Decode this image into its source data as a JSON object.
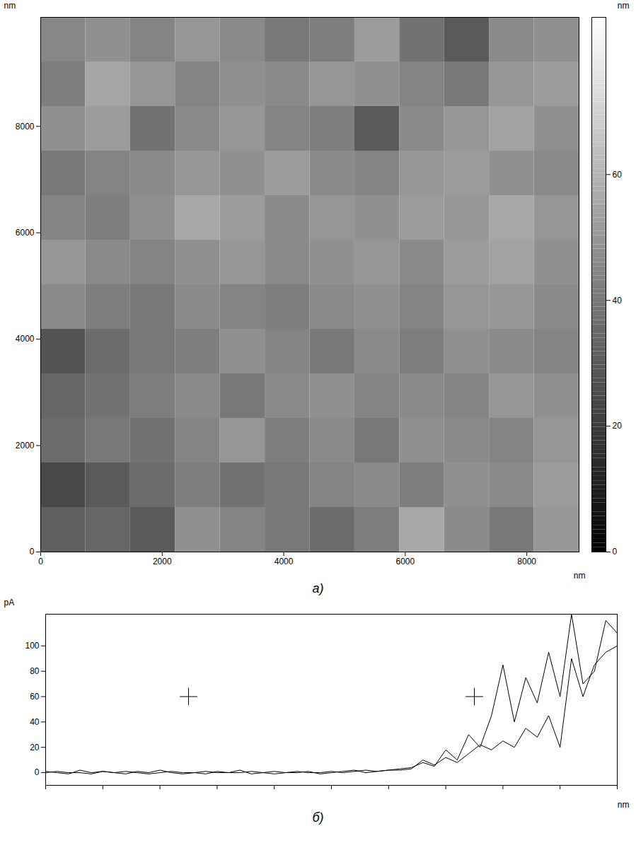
{
  "chart_data": [
    {
      "type": "heatmap",
      "x_label": "nm",
      "y_label": "nm",
      "xlim": [
        0,
        8860
      ],
      "ylim": [
        0,
        10050
      ],
      "xticks": [
        0,
        2000,
        4000,
        6000,
        8000
      ],
      "yticks": [
        0,
        2000,
        4000,
        6000,
        8000
      ],
      "z": [
        [
          45,
          48,
          44,
          50,
          46,
          40,
          42,
          52,
          38,
          30,
          46,
          48
        ],
        [
          42,
          55,
          50,
          44,
          48,
          46,
          50,
          48,
          44,
          40,
          50,
          52
        ],
        [
          48,
          52,
          38,
          46,
          50,
          44,
          42,
          30,
          46,
          50,
          54,
          48
        ],
        [
          40,
          44,
          46,
          50,
          48,
          52,
          46,
          44,
          50,
          52,
          48,
          46
        ],
        [
          44,
          42,
          48,
          56,
          52,
          46,
          50,
          48,
          52,
          50,
          56,
          50
        ],
        [
          50,
          46,
          44,
          48,
          50,
          46,
          48,
          50,
          46,
          52,
          54,
          48
        ],
        [
          46,
          42,
          40,
          46,
          44,
          42,
          46,
          48,
          44,
          50,
          50,
          46
        ],
        [
          28,
          36,
          40,
          42,
          48,
          44,
          40,
          46,
          42,
          48,
          46,
          44
        ],
        [
          34,
          38,
          42,
          46,
          40,
          46,
          48,
          44,
          46,
          44,
          50,
          48
        ],
        [
          36,
          40,
          38,
          44,
          50,
          42,
          46,
          40,
          48,
          46,
          44,
          50
        ],
        [
          24,
          30,
          36,
          42,
          38,
          40,
          44,
          46,
          42,
          48,
          46,
          52
        ],
        [
          32,
          34,
          30,
          48,
          44,
          40,
          36,
          42,
          56,
          46,
          40,
          50
        ]
      ],
      "colorbar": {
        "label": "nm",
        "range": [
          0,
          85
        ],
        "ticks": [
          0,
          20,
          40,
          60
        ]
      },
      "caption": "а)"
    },
    {
      "type": "line",
      "x_label": "nm",
      "y_label": "pA",
      "xlim": [
        0,
        100
      ],
      "ylim": [
        -10,
        125
      ],
      "xticks": [
        0,
        10,
        20,
        30,
        40,
        50,
        60,
        70,
        80,
        90,
        100
      ],
      "yticks": [
        0,
        20,
        40,
        60,
        80,
        100
      ],
      "tick_labels": "y",
      "grid": false,
      "x": [
        0,
        2,
        4,
        6,
        8,
        10,
        12,
        14,
        16,
        18,
        20,
        22,
        24,
        26,
        28,
        30,
        32,
        34,
        36,
        38,
        40,
        42,
        44,
        46,
        48,
        50,
        52,
        54,
        56,
        58,
        60,
        62,
        64,
        66,
        68,
        70,
        72,
        74,
        76,
        78,
        80,
        82,
        84,
        86,
        88,
        90,
        92,
        94,
        96,
        98,
        100
      ],
      "series": [
        {
          "type": "line",
          "color": "#000000",
          "values": [
            1,
            0,
            -1,
            2,
            0,
            1,
            0,
            -1,
            1,
            0,
            2,
            0,
            -1,
            0,
            1,
            0,
            0,
            2,
            -1,
            0,
            1,
            0,
            0,
            1,
            -1,
            0,
            1,
            2,
            0,
            1,
            2,
            3,
            4,
            8,
            5,
            18,
            10,
            30,
            20,
            45,
            85,
            40,
            75,
            55,
            95,
            60,
            125,
            70,
            80,
            120,
            110
          ]
        },
        {
          "type": "line",
          "color": "#000000",
          "values": [
            0,
            1,
            0,
            0,
            -1,
            1,
            0,
            1,
            0,
            -1,
            0,
            1,
            0,
            0,
            -1,
            1,
            0,
            0,
            1,
            0,
            -1,
            0,
            1,
            0,
            0,
            1,
            0,
            1,
            2,
            1,
            2,
            2,
            3,
            10,
            6,
            12,
            8,
            15,
            22,
            18,
            25,
            20,
            35,
            28,
            45,
            20,
            90,
            60,
            85,
            95,
            100
          ]
        },
        {
          "type": "scatter",
          "marker": "plus",
          "color": "#000000",
          "x": [
            25,
            75
          ],
          "values": [
            60,
            60
          ]
        }
      ],
      "caption": "б)"
    }
  ]
}
